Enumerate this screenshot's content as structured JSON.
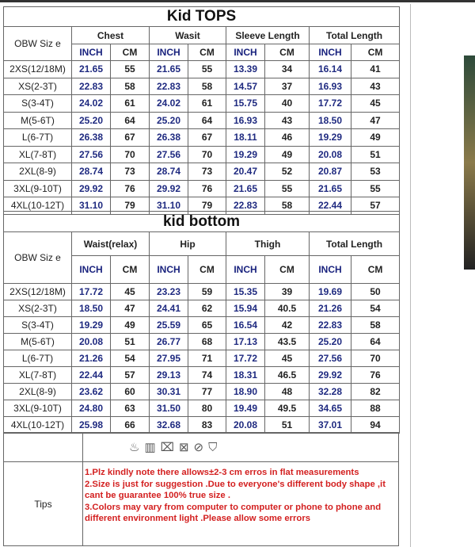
{
  "tops": {
    "title": "Kid TOPS",
    "size_label": "OBW  Siz e",
    "groups": [
      "Chest",
      "Wasit",
      "Sleeve Length",
      "Total Length"
    ],
    "units": [
      "INCH",
      "CM"
    ],
    "rows": [
      [
        "2XS(12/18M)",
        "21.65",
        "55",
        "21.65",
        "55",
        "13.39",
        "34",
        "16.14",
        "41"
      ],
      [
        "XS(2-3T)",
        "22.83",
        "58",
        "22.83",
        "58",
        "14.57",
        "37",
        "16.93",
        "43"
      ],
      [
        "S(3-4T)",
        "24.02",
        "61",
        "24.02",
        "61",
        "15.75",
        "40",
        "17.72",
        "45"
      ],
      [
        "M(5-6T)",
        "25.20",
        "64",
        "25.20",
        "64",
        "16.93",
        "43",
        "18.50",
        "47"
      ],
      [
        "L(6-7T)",
        "26.38",
        "67",
        "26.38",
        "67",
        "18.11",
        "46",
        "19.29",
        "49"
      ],
      [
        "XL(7-8T)",
        "27.56",
        "70",
        "27.56",
        "70",
        "19.29",
        "49",
        "20.08",
        "51"
      ],
      [
        "2XL(8-9)",
        "28.74",
        "73",
        "28.74",
        "73",
        "20.47",
        "52",
        "20.87",
        "53"
      ],
      [
        "3XL(9-10T)",
        "29.92",
        "76",
        "29.92",
        "76",
        "21.65",
        "55",
        "21.65",
        "55"
      ],
      [
        "4XL(10-12T)",
        "31.10",
        "79",
        "31.10",
        "79",
        "22.83",
        "58",
        "22.44",
        "57"
      ]
    ]
  },
  "bottom": {
    "title": "kid bottom",
    "size_label": "OBW  Siz e",
    "groups": [
      "Waist(relax)",
      "Hip",
      "Thigh",
      "Total Length"
    ],
    "units": [
      "INCH",
      "CM"
    ],
    "rows": [
      [
        "2XS(12/18M)",
        "17.72",
        "45",
        "23.23",
        "59",
        "15.35",
        "39",
        "19.69",
        "50"
      ],
      [
        "XS(2-3T)",
        "18.50",
        "47",
        "24.41",
        "62",
        "15.94",
        "40.5",
        "21.26",
        "54"
      ],
      [
        "S(3-4T)",
        "19.29",
        "49",
        "25.59",
        "65",
        "16.54",
        "42",
        "22.83",
        "58"
      ],
      [
        "M(5-6T)",
        "20.08",
        "51",
        "26.77",
        "68",
        "17.13",
        "43.5",
        "25.20",
        "64"
      ],
      [
        "L(6-7T)",
        "21.26",
        "54",
        "27.95",
        "71",
        "17.72",
        "45",
        "27.56",
        "70"
      ],
      [
        "XL(7-8T)",
        "22.44",
        "57",
        "29.13",
        "74",
        "18.31",
        "46.5",
        "29.92",
        "76"
      ],
      [
        "2XL(8-9)",
        "23.62",
        "60",
        "30.31",
        "77",
        "18.90",
        "48",
        "32.28",
        "82"
      ],
      [
        "3XL(9-10T)",
        "24.80",
        "63",
        "31.50",
        "80",
        "19.49",
        "49.5",
        "34.65",
        "88"
      ],
      [
        "4XL(10-12T)",
        "25.98",
        "66",
        "32.68",
        "83",
        "20.08",
        "51",
        "37.01",
        "94"
      ]
    ]
  },
  "care_icons": [
    "hand-wash-icon",
    "wash-basin-icon",
    "no-wring-icon",
    "no-tumble-dry-icon",
    "no-dry-clean-icon",
    "hang-dry-icon"
  ],
  "tips": {
    "label": "Tips",
    "lines": [
      "1.Plz kindly note there allows±2-3 cm erros in flat  measurements",
      "2.Size is just for suggestion .Due to everyone's different body shape ,it cant be guarantee 100% true size .",
      "3.Colors may  vary from computer to computer or phone to phone and different environment light .Please allow some errors"
    ]
  },
  "colors": {
    "inch_text": "#1f2a80",
    "tips_text": "#d32020"
  }
}
